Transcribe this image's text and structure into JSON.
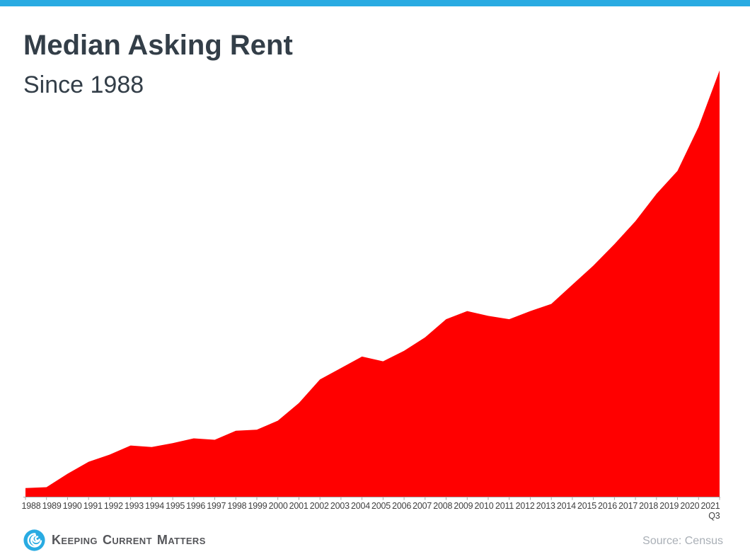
{
  "header": {
    "title": "Median Asking Rent",
    "subtitle": "Since 1988"
  },
  "chart_data": {
    "type": "area",
    "title": "Median Asking Rent",
    "subtitle": "Since 1988",
    "series_name": "Median Asking Rent (USD per month)",
    "categories": [
      "1988",
      "1989",
      "1990",
      "1991",
      "1992",
      "1993",
      "1994",
      "1995",
      "1996",
      "1997",
      "1998",
      "1999",
      "2000",
      "2001",
      "2002",
      "2003",
      "2004",
      "2005",
      "2006",
      "2007",
      "2008",
      "2009",
      "2010",
      "2011",
      "2012",
      "2013",
      "2014",
      "2015",
      "2016",
      "2017",
      "2018",
      "2019",
      "2020",
      "2021"
    ],
    "values": [
      330,
      332,
      360,
      385,
      400,
      419,
      416,
      424,
      434,
      431,
      450,
      452,
      471,
      508,
      557,
      581,
      605,
      595,
      617,
      645,
      683,
      700,
      690,
      683,
      700,
      715,
      755,
      795,
      840,
      888,
      945,
      993,
      1085,
      1203
    ],
    "final_period_label": "Q3",
    "xlabel": "",
    "ylabel": "",
    "ylim": [
      312,
      1203
    ],
    "grid": false,
    "legend_position": "none",
    "fill_color": "#FF0000",
    "axis_color": "#A6A6A6",
    "axis_text_color": "#3F3F3F"
  },
  "footer": {
    "brand_words": [
      "Keeping",
      "Current",
      "Matters"
    ],
    "source": "Source: Census"
  },
  "colors": {
    "accent_blue": "#29ABE2",
    "area_red": "#FF0000",
    "title_text": "#333E48",
    "brand_text": "#55565A",
    "source_text": "#A9AFB6"
  }
}
